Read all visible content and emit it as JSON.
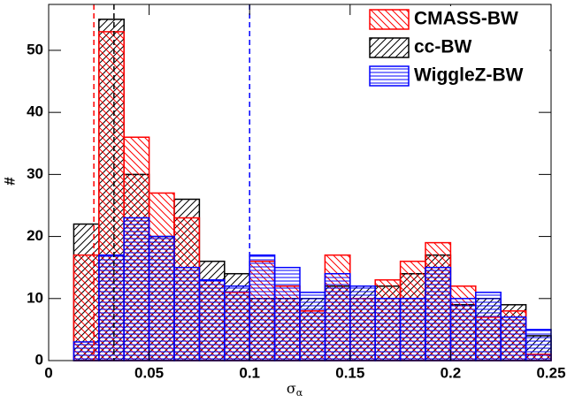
{
  "chart_data": {
    "type": "histogram",
    "x_label_symbol": "σ",
    "x_label_subscript": "α",
    "y_label": "#",
    "bins": [
      0.0125,
      0.025,
      0.0375,
      0.05,
      0.0625,
      0.075,
      0.0875,
      0.1,
      0.1125,
      0.125,
      0.1375,
      0.15,
      0.1625,
      0.175,
      0.1875,
      0.2,
      0.2125,
      0.225,
      0.2375,
      0.25
    ],
    "series": [
      {
        "name": "cc-BW",
        "color": "#000000",
        "hatch": "forward",
        "values": [
          22,
          55,
          30,
          20,
          26,
          16,
          14,
          10,
          10,
          10,
          12,
          12,
          12,
          14,
          17,
          9,
          10,
          9,
          4
        ]
      },
      {
        "name": "CMASS-BW",
        "color": "#ff0000",
        "hatch": "backward",
        "values": [
          17,
          53,
          36,
          27,
          23,
          13,
          11,
          16,
          12,
          8,
          17,
          10,
          13,
          16,
          19,
          12,
          7,
          8,
          1
        ]
      },
      {
        "name": "WiggleZ-BW",
        "color": "#0000ff",
        "hatch": "horizontal",
        "values": [
          3,
          17,
          23,
          20,
          15,
          13,
          12,
          17,
          15,
          11,
          14,
          12,
          10,
          10,
          15,
          10,
          11,
          7,
          5
        ]
      }
    ],
    "legend_order": [
      1,
      0,
      2
    ],
    "vlines": [
      {
        "x": 0.0225,
        "color": "#ff0000"
      },
      {
        "x": 0.0325,
        "color": "#000000"
      },
      {
        "x": 0.1,
        "color": "#0000ff"
      }
    ],
    "xlim": [
      0,
      0.25
    ],
    "xticks": [
      0,
      0.05,
      0.1,
      0.15,
      0.2,
      0.25
    ],
    "ylim": [
      0,
      57.4
    ],
    "yticks": [
      0,
      10,
      20,
      30,
      40,
      50
    ],
    "grid": false,
    "legend": "upper right"
  }
}
